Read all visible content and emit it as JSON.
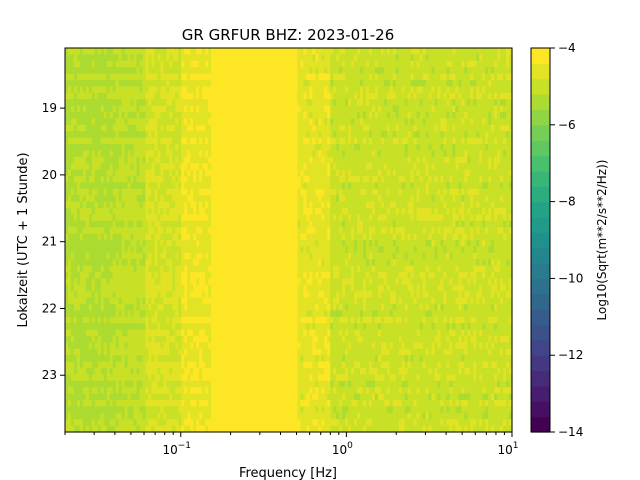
{
  "chart_data": {
    "type": "heatmap",
    "title": "GR GRFUR  BHZ: 2023-01-26",
    "xlabel": "Frequency [Hz]",
    "ylabel": "Lokalzeit (UTC + 1 Stunde)",
    "x_scale": "log",
    "xlim": [
      0.02,
      10
    ],
    "x_ticks": [
      {
        "value": 0.1,
        "base": "10",
        "exp": "−1"
      },
      {
        "value": 1,
        "base": "10",
        "exp": "0"
      },
      {
        "value": 10,
        "base": "10",
        "exp": "1"
      }
    ],
    "ylim": [
      18.1,
      23.85
    ],
    "y_inverted": true,
    "y_ticks": [
      "19",
      "20",
      "21",
      "22",
      "23"
    ],
    "colorbar": {
      "label": "Log10(Sqrt(m**2/s**2/Hz))",
      "colormap": "viridis",
      "range": [
        -14,
        -4
      ],
      "ticks": [
        "−4",
        "−6",
        "−8",
        "−10",
        "−12",
        "−14"
      ],
      "levels": 25
    },
    "frequency_bands": [
      {
        "from": 0.02,
        "to": 0.04,
        "value_range": [
          -5.4,
          -5.1
        ]
      },
      {
        "from": 0.04,
        "to": 0.06,
        "value_range": [
          -5.3,
          -5.0
        ]
      },
      {
        "from": 0.06,
        "to": 0.1,
        "value_range": [
          -5.0,
          -4.6
        ]
      },
      {
        "from": 0.1,
        "to": 0.15,
        "value_range": [
          -4.6,
          -4.3
        ]
      },
      {
        "from": 0.15,
        "to": 0.5,
        "value_range": [
          -4.2,
          -4.0
        ]
      },
      {
        "from": 0.5,
        "to": 0.8,
        "value_range": [
          -4.8,
          -4.3
        ]
      },
      {
        "from": 0.8,
        "to": 10,
        "value_range": [
          -5.2,
          -4.7
        ]
      }
    ],
    "grid": false
  }
}
